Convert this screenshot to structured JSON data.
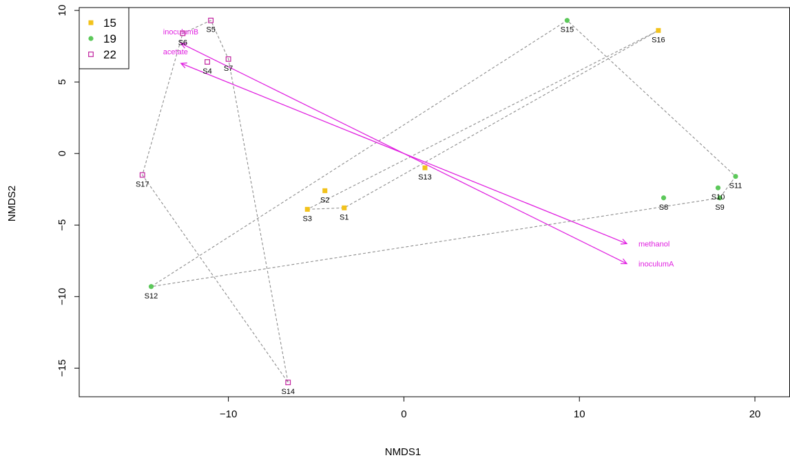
{
  "chart_data": {
    "type": "scatter",
    "xlabel": "NMDS1",
    "ylabel": "NMDS2",
    "xlim": [
      -18.5,
      22
    ],
    "ylim": [
      -17,
      10.2
    ],
    "x_ticks": [
      -10,
      0,
      10,
      20
    ],
    "x_tick_labels": [
      "−10",
      "0",
      "10",
      "20"
    ],
    "y_ticks": [
      -15,
      -10,
      -5,
      0,
      5,
      10
    ],
    "y_tick_labels": [
      "−15",
      "−10",
      "−5",
      "0",
      "5",
      "10"
    ],
    "grid": false,
    "legend_position": "top-left",
    "legend": [
      {
        "name": "15",
        "marker": "filled-square",
        "color": "#f2c21b"
      },
      {
        "name": "19",
        "marker": "filled-circle",
        "color": "#5cc85a"
      },
      {
        "name": "22",
        "marker": "open-square",
        "color": "#c0209e"
      }
    ],
    "series": [
      {
        "name": "15",
        "points": [
          {
            "label": "S1",
            "x": -3.4,
            "y": -3.8
          },
          {
            "label": "S2",
            "x": -4.5,
            "y": -2.6
          },
          {
            "label": "S3",
            "x": -5.5,
            "y": -3.9
          },
          {
            "label": "S13",
            "x": 1.2,
            "y": -1.0
          },
          {
            "label": "S16",
            "x": 14.5,
            "y": 8.6
          }
        ]
      },
      {
        "name": "19",
        "points": [
          {
            "label": "S8",
            "x": 14.8,
            "y": -3.1
          },
          {
            "label": "S9",
            "x": 18.0,
            "y": -3.1
          },
          {
            "label": "S10",
            "x": 17.9,
            "y": -2.4
          },
          {
            "label": "S11",
            "x": 18.9,
            "y": -1.6
          },
          {
            "label": "S12",
            "x": -14.4,
            "y": -9.3
          },
          {
            "label": "S15",
            "x": 9.3,
            "y": 9.3
          }
        ]
      },
      {
        "name": "22",
        "points": [
          {
            "label": "S4",
            "x": -11.2,
            "y": 6.4
          },
          {
            "label": "S5",
            "x": -11.0,
            "y": 9.3
          },
          {
            "label": "S6",
            "x": -12.6,
            "y": 8.4
          },
          {
            "label": "S7",
            "x": -10.0,
            "y": 6.6
          },
          {
            "label": "S14",
            "x": -6.6,
            "y": -16.0
          },
          {
            "label": "S17",
            "x": -14.9,
            "y": -1.5
          }
        ]
      }
    ],
    "hulls": [
      {
        "group": "15",
        "path": [
          "S3",
          "S1",
          "S16",
          "S3"
        ]
      },
      {
        "group": "19",
        "path": [
          "S12",
          "S15",
          "S11",
          "S9",
          "S12"
        ]
      },
      {
        "group": "22",
        "path": [
          "S14",
          "S7",
          "S5",
          "S6",
          "S17",
          "S14"
        ]
      }
    ],
    "vectors": [
      {
        "label": "methanol",
        "x": 12.7,
        "y": -6.3
      },
      {
        "label": "inoculumA",
        "x": 12.7,
        "y": -7.7
      },
      {
        "label": "inoculumB",
        "x": -12.7,
        "y": 7.7
      },
      {
        "label": "acetate",
        "x": -12.7,
        "y": 6.3
      }
    ],
    "colors": {
      "g15": "#f2c21b",
      "g19": "#5cc85a",
      "g22": "#c0209e",
      "vector": "#e020e0",
      "hull": "#8c8c8c"
    }
  }
}
